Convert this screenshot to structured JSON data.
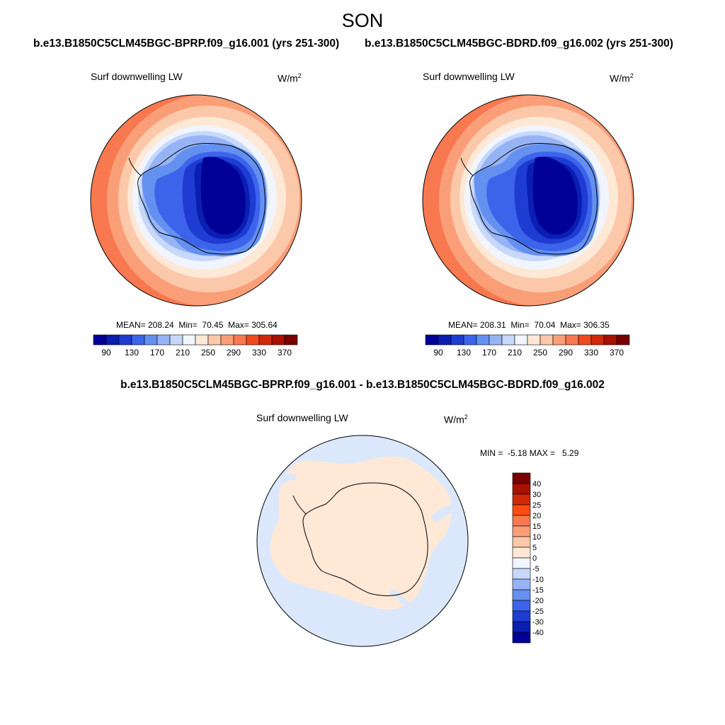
{
  "figure": {
    "season": "SON"
  },
  "panels": [
    {
      "case": "b.e13.B1850C5CLM45BGC-BPRP.f09_g16.001 (yrs 251-300)",
      "variable": "Surf downwelling LW",
      "units_base": "W/m",
      "units_exp": "2",
      "stats": "MEAN= 208.24  Min=  70.45  Max= 305.64"
    },
    {
      "case": "b.e13.B1850C5CLM45BGC-BDRD.f09_g16.002 (yrs 251-300)",
      "variable": "Surf downwelling LW",
      "units_base": "W/m",
      "units_exp": "2",
      "stats": "MEAN= 208.31  Min=  70.04  Max= 306.35"
    }
  ],
  "difference": {
    "title": "b.e13.B1850C5CLM45BGC-BPRP.f09_g16.001 - b.e13.B1850C5CLM45BGC-BDRD.f09_g16.002",
    "variable": "Surf downwelling LW",
    "units_base": "W/m",
    "units_exp": "2",
    "stats": "MIN =  -5.18 MAX =   5.29"
  },
  "colorbar_main": {
    "colors": [
      "#000096",
      "#0a1eb4",
      "#1e3cd2",
      "#3c64eb",
      "#6490f0",
      "#96b4f5",
      "#c8d8fa",
      "#f0f5ff",
      "#ffe8d6",
      "#fcc8aa",
      "#fa9e78",
      "#f87850",
      "#f04a1e",
      "#d2280a",
      "#aa1000",
      "#780000"
    ],
    "tick_labels": [
      "90",
      "130",
      "170",
      "210",
      "250",
      "290",
      "330",
      "370"
    ]
  },
  "colorbar_diff": {
    "colors": [
      "#780000",
      "#aa1000",
      "#d2280a",
      "#ff4a14",
      "#fa7850",
      "#fa9e78",
      "#fcc8aa",
      "#ffe8d6",
      "#f0f5ff",
      "#c8d8fa",
      "#96b4f5",
      "#6490f0",
      "#3c64eb",
      "#1e3cd2",
      "#0a1eb4",
      "#000096"
    ],
    "tick_labels": [
      "40",
      "30",
      "25",
      "20",
      "15",
      "10",
      "5",
      "0",
      "-5",
      "-10",
      "-15",
      "-20",
      "-25",
      "-30",
      "-40"
    ]
  }
}
